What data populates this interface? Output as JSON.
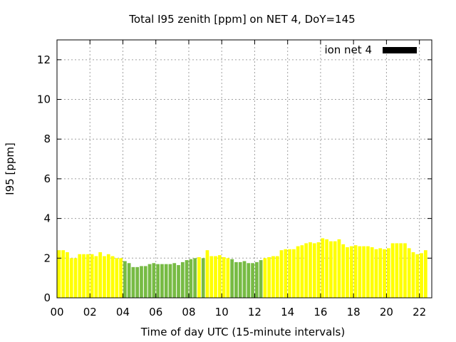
{
  "chart_data": {
    "type": "bar",
    "title": "Total I95 zenith [ppm] on NET 4, DoY=145",
    "xlabel": "Time of day UTC (15-minute intervals)",
    "ylabel": "I95 [ppm]",
    "xlim": [
      0,
      22.75
    ],
    "ylim": [
      0,
      13
    ],
    "x_interval_hours": 0.25,
    "x_ticks": [
      {
        "value": 0,
        "label": "00"
      },
      {
        "value": 2,
        "label": "02"
      },
      {
        "value": 4,
        "label": "04"
      },
      {
        "value": 6,
        "label": "06"
      },
      {
        "value": 8,
        "label": "08"
      },
      {
        "value": 10,
        "label": "10"
      },
      {
        "value": 12,
        "label": "12"
      },
      {
        "value": 14,
        "label": "14"
      },
      {
        "value": 16,
        "label": "16"
      },
      {
        "value": 18,
        "label": "18"
      },
      {
        "value": 20,
        "label": "20"
      },
      {
        "value": 22,
        "label": "22"
      }
    ],
    "y_ticks": [
      {
        "value": 0,
        "label": "0"
      },
      {
        "value": 2,
        "label": "2"
      },
      {
        "value": 4,
        "label": "4"
      },
      {
        "value": 6,
        "label": "6"
      },
      {
        "value": 8,
        "label": "8"
      },
      {
        "value": 10,
        "label": "10"
      },
      {
        "value": 12,
        "label": "12"
      }
    ],
    "grid": true,
    "legend": {
      "label": "ion net 4",
      "color": "#000000",
      "position": "top-right"
    },
    "colors": {
      "high": "#ffff00",
      "low": "#77bb44"
    },
    "values": [
      2.4,
      2.4,
      2.3,
      2.0,
      2.0,
      2.2,
      2.2,
      2.2,
      2.2,
      2.1,
      2.3,
      2.1,
      2.2,
      2.1,
      2.0,
      2.0,
      1.85,
      1.75,
      1.55,
      1.55,
      1.6,
      1.6,
      1.7,
      1.75,
      1.7,
      1.7,
      1.7,
      1.7,
      1.75,
      1.65,
      1.8,
      1.9,
      1.95,
      2.0,
      2.05,
      2.0,
      2.4,
      2.1,
      2.1,
      2.15,
      2.05,
      2.0,
      1.95,
      1.8,
      1.8,
      1.85,
      1.75,
      1.75,
      1.8,
      1.9,
      2.0,
      2.05,
      2.1,
      2.1,
      2.4,
      2.45,
      2.45,
      2.45,
      2.6,
      2.65,
      2.75,
      2.8,
      2.75,
      2.8,
      3.0,
      2.95,
      2.85,
      2.85,
      2.95,
      2.7,
      2.55,
      2.6,
      2.65,
      2.6,
      2.6,
      2.6,
      2.55,
      2.45,
      2.5,
      2.45,
      2.5,
      2.75,
      2.75,
      2.75,
      2.75,
      2.5,
      2.3,
      2.2,
      2.25,
      2.4
    ],
    "bar_colors": [
      "high",
      "high",
      "high",
      "high",
      "high",
      "high",
      "high",
      "high",
      "high",
      "high",
      "high",
      "high",
      "high",
      "high",
      "high",
      "high",
      "low",
      "low",
      "low",
      "low",
      "low",
      "low",
      "low",
      "low",
      "low",
      "low",
      "low",
      "low",
      "low",
      "low",
      "low",
      "low",
      "low",
      "low",
      "high",
      "low",
      "high",
      "high",
      "high",
      "high",
      "high",
      "high",
      "low",
      "low",
      "low",
      "low",
      "low",
      "low",
      "low",
      "low",
      "high",
      "high",
      "high",
      "high",
      "high",
      "high",
      "high",
      "high",
      "high",
      "high",
      "high",
      "high",
      "high",
      "high",
      "high",
      "high",
      "high",
      "high",
      "high",
      "high",
      "high",
      "high",
      "high",
      "high",
      "high",
      "high",
      "high",
      "high",
      "high",
      "high",
      "high",
      "high",
      "high",
      "high",
      "high",
      "high",
      "high",
      "high",
      "high",
      "high"
    ]
  }
}
